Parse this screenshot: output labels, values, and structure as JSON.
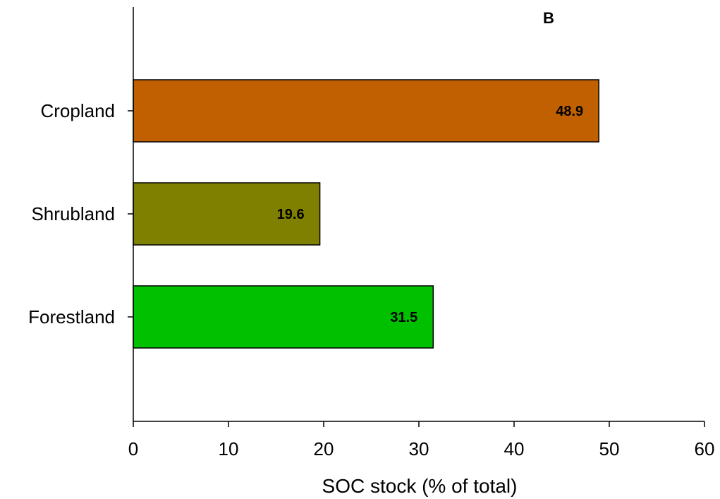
{
  "chart_data": {
    "type": "bar",
    "orientation": "horizontal",
    "panel_label": "B",
    "categories": [
      "Cropland",
      "Shrubland",
      "Forestland"
    ],
    "values": [
      48.9,
      19.6,
      31.5
    ],
    "data_labels": [
      "48.9",
      "19.6",
      "31.5"
    ],
    "colors": [
      "#C06000",
      "#808000",
      "#00C000"
    ],
    "xlabel": "SOC stock (% of total)",
    "ylabel": "",
    "xlim": [
      0,
      60
    ],
    "xticks": [
      0,
      10,
      20,
      30,
      40,
      50,
      60
    ],
    "xtick_labels": [
      "0",
      "10",
      "20",
      "30",
      "40",
      "50",
      "60"
    ],
    "grid": false,
    "legend": "none"
  }
}
